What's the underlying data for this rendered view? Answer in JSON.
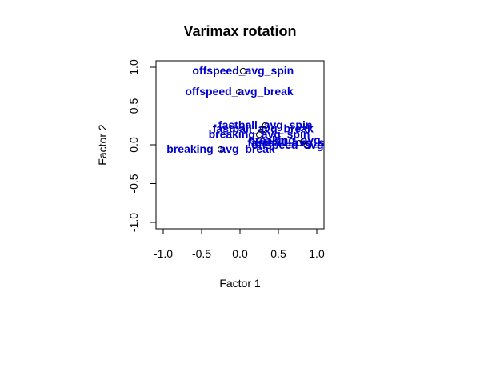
{
  "chart_data": {
    "type": "scatter",
    "title": "Varimax rotation",
    "xlabel": "Factor 1",
    "ylabel": "Factor 2",
    "xlim": [
      -1.0,
      1.0
    ],
    "ylim": [
      -1.0,
      1.0
    ],
    "xticks": [
      "-1.0",
      "-0.5",
      "0.0",
      "0.5",
      "1.0"
    ],
    "yticks": [
      "-1.0",
      "-0.5",
      "0.0",
      "0.5",
      "1.0"
    ],
    "grid": false,
    "point_style": "open-circle",
    "label_color": "#0000cc",
    "points": [
      {
        "label": "offspeed_avg_spin",
        "x": 0.04,
        "y": 0.95
      },
      {
        "label": "offspeed_avg_break",
        "x": -0.01,
        "y": 0.68
      },
      {
        "label": "fastball_avg_spin",
        "x": 0.33,
        "y": 0.25
      },
      {
        "label": "fastball_avg_break",
        "x": 0.3,
        "y": 0.2
      },
      {
        "label": "breaking_avg_spin",
        "x": 0.25,
        "y": 0.13
      },
      {
        "label": "breaking_avg_break",
        "x": -0.25,
        "y": -0.06
      },
      {
        "label": "fastball_avg_speed",
        "x": 0.77,
        "y": 0.02
      },
      {
        "label": "breaking_avg_speed",
        "x": 0.83,
        "y": 0.05
      },
      {
        "label": "offspeed_avg_speed",
        "x": 0.87,
        "y": -0.01
      }
    ]
  }
}
